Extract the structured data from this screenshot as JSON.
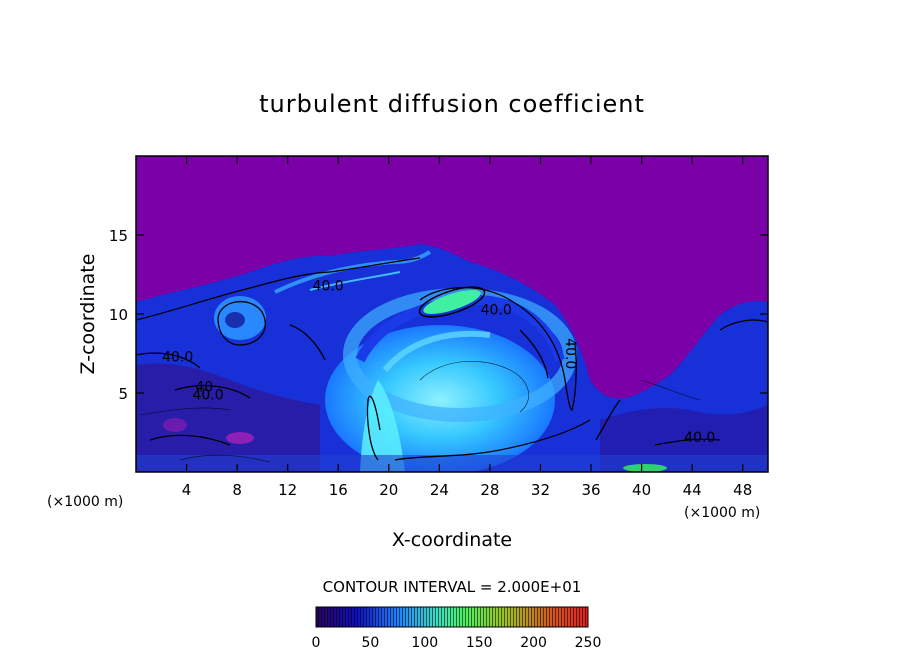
{
  "chart_data": {
    "type": "heatmap",
    "title": "turbulent diffusion coefficient",
    "xlabel": "X-coordinate",
    "ylabel": "Z-coordinate",
    "x_unit": "(×1000 m)",
    "x_unit_right": "(×1000 m)",
    "xlim": [
      0,
      50
    ],
    "ylim": [
      0,
      20
    ],
    "x_ticks": [
      4,
      8,
      12,
      16,
      20,
      24,
      28,
      32,
      36,
      40,
      44,
      48
    ],
    "y_ticks": [
      5,
      10,
      15
    ],
    "contour_interval_text": "CONTOUR INTERVAL = 2.000E+01",
    "contour_labels": [
      {
        "text": "40.0",
        "x": 15.2,
        "z": 11.8
      },
      {
        "text": "40.0",
        "x": 28.5,
        "z": 10.3
      },
      {
        "text": "40.0",
        "x": 34.0,
        "z": 7.8
      },
      {
        "text": "40.0",
        "x": 3.3,
        "z": 7.3
      },
      {
        "text": "40",
        "x": 5.4,
        "z": 5.4
      },
      {
        "text": "40.0",
        "x": 5.7,
        "z": 4.9
      },
      {
        "text": "40.0",
        "x": 44.6,
        "z": 2.2
      }
    ],
    "colorbar": {
      "min": 0,
      "max": 250,
      "ticks": [
        0,
        50,
        100,
        150,
        200,
        250
      ],
      "colors": [
        "#2a0060",
        "#1d1de0",
        "#2aa0ff",
        "#40ff80",
        "#c0a000",
        "#e02020"
      ]
    },
    "background_value_color": "#7b00a8"
  }
}
